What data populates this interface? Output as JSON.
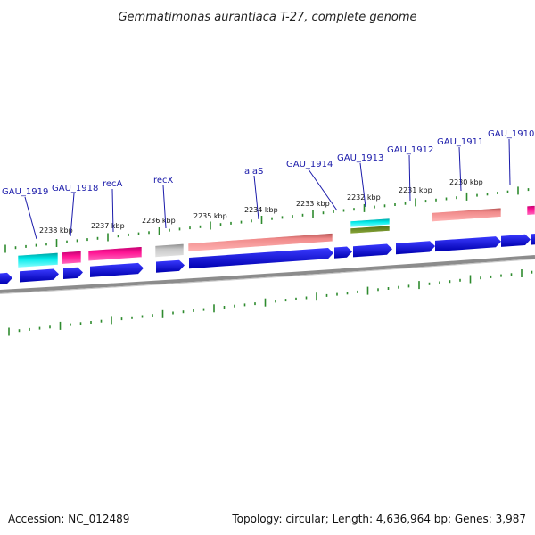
{
  "title": "Gemmatimonas aurantiaca T-27, complete genome",
  "accession": "Accession: NC_012489",
  "topology": "Topology: circular; Length: 4,636,964 bp; Genes: 3,987",
  "colors": {
    "cds": "#0000ee",
    "trna": "#00dede",
    "rrna": "#f07e7e",
    "misc": "#ff1493",
    "pseudo": "#bdbdbd",
    "other": "#6b8e23",
    "backbone": "#8c8c8c",
    "tick": "#2e8b2e",
    "label": "#1a1aaa"
  },
  "scale_labels": [
    "2238 kbp",
    "2237 kbp",
    "2236 kbp",
    "2235 kbp",
    "2234 kbp",
    "2233 kbp",
    "2232 kbp",
    "2231 kbp",
    "2230 kbp"
  ],
  "gene_labels": [
    "GAU_1919",
    "GAU_1918",
    "recA",
    "recX",
    "alaS",
    "GAU_1914",
    "GAU_1913",
    "GAU_1912",
    "GAU_1911",
    "GAU_1910"
  ]
}
